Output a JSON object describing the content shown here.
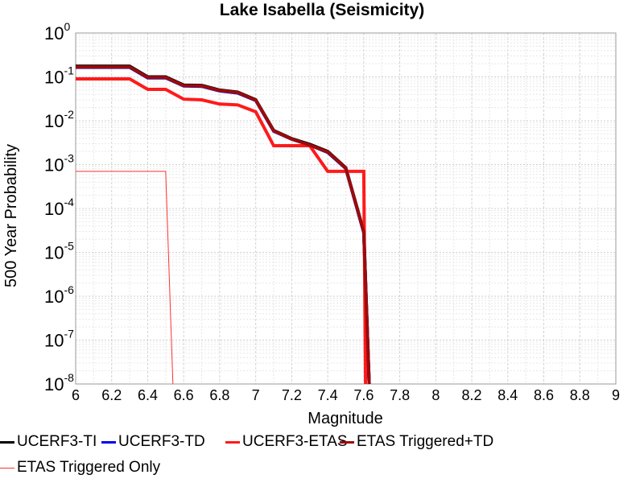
{
  "chart_data": {
    "type": "line",
    "title": "Lake Isabella (Seismicity)",
    "xlabel": "Magnitude",
    "ylabel": "500 Year Probability",
    "xlim": [
      6,
      9
    ],
    "ylim": [
      1e-08,
      1
    ],
    "yscale": "log",
    "grid": true,
    "xticks": [
      "6",
      "6.2",
      "6.4",
      "6.6",
      "6.8",
      "7",
      "7.2",
      "7.4",
      "7.6",
      "7.8",
      "8",
      "8.2",
      "8.4",
      "8.6",
      "8.8",
      "9"
    ],
    "yticks": [
      {
        "base": "10",
        "exp": "0"
      },
      {
        "base": "10",
        "exp": "-1"
      },
      {
        "base": "10",
        "exp": "-2"
      },
      {
        "base": "10",
        "exp": "-3"
      },
      {
        "base": "10",
        "exp": "-4"
      },
      {
        "base": "10",
        "exp": "-5"
      },
      {
        "base": "10",
        "exp": "-6"
      },
      {
        "base": "10",
        "exp": "-7"
      },
      {
        "base": "10",
        "exp": "-8"
      }
    ],
    "legend_position": "bottom",
    "series": [
      {
        "name": "UCERF3-TI",
        "color": "#000000",
        "width": 4,
        "x": [
          6.0,
          6.3,
          6.4,
          6.5,
          6.6,
          6.7,
          6.8,
          6.9,
          7.0,
          7.1,
          7.2,
          7.3,
          7.4,
          7.5,
          7.6,
          7.63
        ],
        "y": [
          0.175,
          0.175,
          0.1,
          0.1,
          0.065,
          0.064,
          0.05,
          0.045,
          0.03,
          0.006,
          0.0039,
          0.0029,
          0.002,
          0.00085,
          3e-05,
          1e-08
        ]
      },
      {
        "name": "UCERF3-TD",
        "color": "#0000ee",
        "width": 4,
        "x": [
          6.0,
          6.3,
          6.4,
          6.5,
          6.6,
          6.7,
          6.8,
          6.9,
          7.0,
          7.1,
          7.2,
          7.3,
          7.4,
          7.5,
          7.6,
          7.63
        ],
        "y": [
          0.165,
          0.165,
          0.095,
          0.095,
          0.062,
          0.061,
          0.048,
          0.043,
          0.029,
          0.0058,
          0.0038,
          0.0028,
          0.0019,
          0.00082,
          2.8e-05,
          1e-08
        ]
      },
      {
        "name": "UCERF3-ETAS",
        "color": "#ff1a1a",
        "width": 4,
        "x": [
          6.0,
          6.3,
          6.4,
          6.5,
          6.6,
          6.7,
          6.8,
          6.9,
          7.0,
          7.1,
          7.2,
          7.3,
          7.4,
          7.5,
          7.6,
          7.61
        ],
        "y": [
          0.09,
          0.09,
          0.052,
          0.052,
          0.031,
          0.03,
          0.024,
          0.023,
          0.016,
          0.0027,
          0.0027,
          0.0027,
          0.0007,
          0.0007,
          0.0007,
          1e-08
        ]
      },
      {
        "name": "ETAS Triggered+TD",
        "color": "#9b0b0b",
        "width": 4,
        "x": [
          6.0,
          6.3,
          6.4,
          6.5,
          6.6,
          6.7,
          6.8,
          6.9,
          7.0,
          7.1,
          7.2,
          7.3,
          7.4,
          7.5,
          7.6,
          7.63
        ],
        "y": [
          0.168,
          0.168,
          0.097,
          0.097,
          0.063,
          0.062,
          0.049,
          0.044,
          0.0295,
          0.0059,
          0.0038,
          0.0028,
          0.00195,
          0.00083,
          2.9e-05,
          1e-08
        ]
      },
      {
        "name": "ETAS Triggered Only",
        "color": "#ff3030",
        "width": 1,
        "x": [
          6.0,
          6.5,
          6.54
        ],
        "y": [
          0.0007,
          0.0007,
          1e-08
        ]
      }
    ]
  }
}
